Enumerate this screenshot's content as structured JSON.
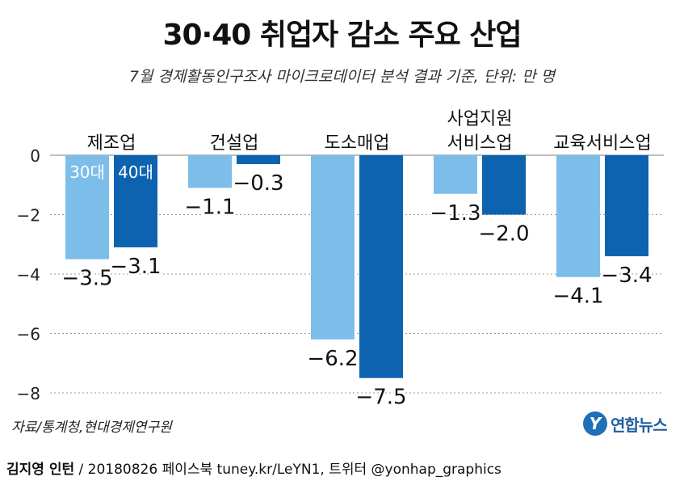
{
  "title": "30·40 취업자 감소 주요 산업",
  "subtitle": "7월 경제활동인구조사 마이크로데이터 분석 결과 기준, 단위: 만 명",
  "source": "자료/통계청,현대경제연구원",
  "logo_text": "연합뉴스",
  "credit": {
    "name": "김지영 인턴",
    "rest": " / 20180826 페이스북 tuney.kr/LeYN1, 트위터 @yonhap_graphics"
  },
  "colors": {
    "series_30": "#7dbde9",
    "series_40": "#0d63b0",
    "grid": "#999999"
  },
  "chart_data": {
    "type": "bar",
    "title": "30·40 취업자 감소 주요 산업",
    "categories": [
      [
        "제조업"
      ],
      [
        "건설업"
      ],
      [
        "도소매업"
      ],
      [
        "사업지원",
        "서비스업"
      ],
      [
        "교육서비스업"
      ]
    ],
    "series": [
      {
        "name": "30대",
        "values": [
          -3.5,
          -1.1,
          -6.2,
          -1.3,
          -4.1
        ]
      },
      {
        "name": "40대",
        "values": [
          -3.1,
          -0.3,
          -7.5,
          -2.0,
          -3.4
        ]
      }
    ],
    "value_labels": [
      [
        "−3.5",
        "−1.1",
        "−6.2",
        "−1.3",
        "−4.1"
      ],
      [
        "−3.1",
        "−0.3",
        "−7.5",
        "−2.0",
        "−3.4"
      ]
    ],
    "yticks": [
      0,
      -2,
      -4,
      -6,
      -8
    ],
    "ytick_labels": [
      "0",
      "−2",
      "−4",
      "−6",
      "−8"
    ],
    "ylim": [
      -8,
      0
    ],
    "grid": true,
    "unit": "만 명",
    "legend": "inside first category bars"
  }
}
